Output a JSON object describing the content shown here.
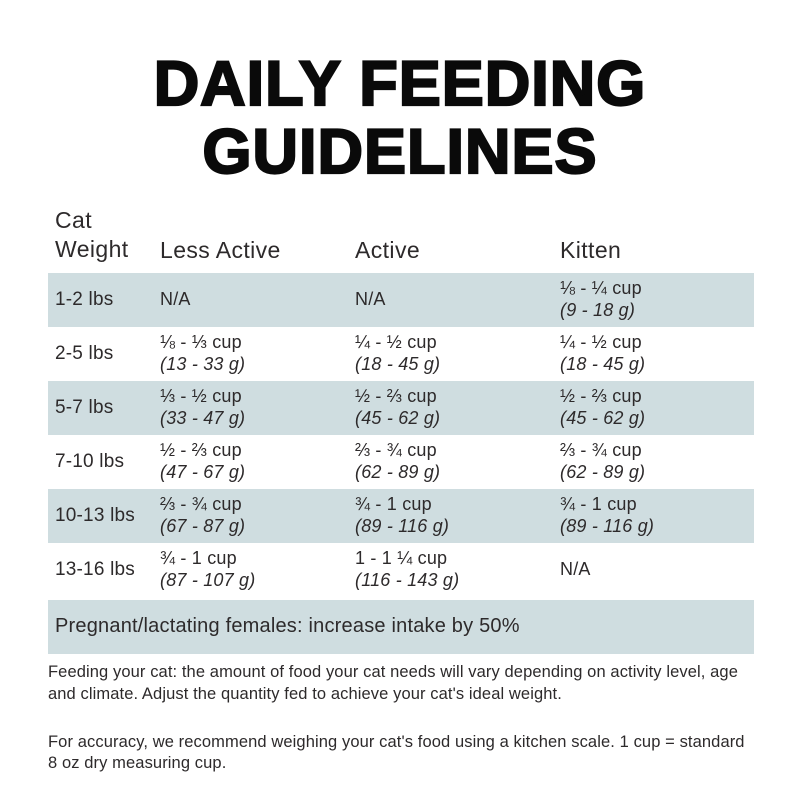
{
  "title": {
    "line1": "DAILY FEEDING",
    "line2": "GUIDELINES"
  },
  "table": {
    "header": {
      "col1_line1": "Cat",
      "col1_line2": "Weight",
      "col2": "Less Active",
      "col3": "Active",
      "col4": "Kitten"
    },
    "rows": [
      {
        "weight": "1-2 lbs",
        "less_active": {
          "cup": "N/A",
          "g": ""
        },
        "active": {
          "cup": "N/A",
          "g": ""
        },
        "kitten": {
          "cup": "⅛ - ¼ cup",
          "g": "(9 - 18 g)"
        }
      },
      {
        "weight": "2-5 lbs",
        "less_active": {
          "cup": "⅛ - ⅓ cup",
          "g": "(13 - 33 g)"
        },
        "active": {
          "cup": "¼ - ½ cup",
          "g": "(18 - 45 g)"
        },
        "kitten": {
          "cup": "¼ - ½ cup",
          "g": "(18 - 45 g)"
        }
      },
      {
        "weight": "5-7 lbs",
        "less_active": {
          "cup": "⅓ - ½ cup",
          "g": "(33 - 47 g)"
        },
        "active": {
          "cup": "½ - ⅔ cup",
          "g": "(45 - 62 g)"
        },
        "kitten": {
          "cup": "½ - ⅔ cup",
          "g": "(45 - 62 g)"
        }
      },
      {
        "weight": "7-10 lbs",
        "less_active": {
          "cup": "½ - ⅔ cup",
          "g": "(47 - 67 g)"
        },
        "active": {
          "cup": "⅔ - ¾ cup",
          "g": "(62 - 89 g)"
        },
        "kitten": {
          "cup": "⅔ - ¾ cup",
          "g": "(62 - 89 g)"
        }
      },
      {
        "weight": "10-13 lbs",
        "less_active": {
          "cup": "⅔ - ¾ cup",
          "g": "(67 - 87 g)"
        },
        "active": {
          "cup": "¾ - 1 cup",
          "g": "(89 - 116 g)"
        },
        "kitten": {
          "cup": "¾ - 1 cup",
          "g": "(89 - 116 g)"
        }
      },
      {
        "weight": "13-16 lbs",
        "less_active": {
          "cup": "¾ - 1 cup",
          "g": "(87 - 107 g)"
        },
        "active": {
          "cup": "1 - 1 ¼ cup",
          "g": "(116 - 143 g)"
        },
        "kitten": {
          "cup": "N/A",
          "g": ""
        }
      }
    ],
    "note": "Pregnant/lactating females: increase intake by 50%"
  },
  "footnotes": {
    "p1": "Feeding your cat: the amount of food your cat needs will vary depending on activity level, age and climate. Adjust the quantity fed to achieve your cat's ideal weight.",
    "p2": "For accuracy, we recommend weighing your cat's food using a kitchen scale. 1 cup = standard 8 oz dry measuring cup."
  },
  "colors": {
    "row_shaded": "#cfdde0",
    "body_text": "#2d2a2b",
    "title_text": "#0a0a0a"
  }
}
